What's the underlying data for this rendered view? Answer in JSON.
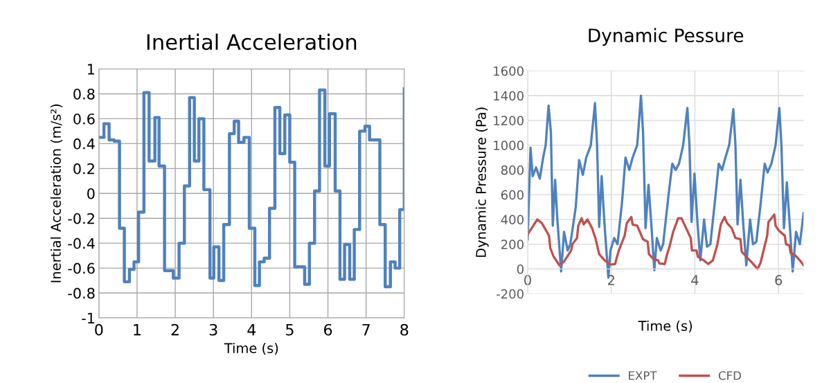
{
  "chart_data": [
    {
      "type": "step",
      "title": "Inertial Acceleration",
      "xlabel": "Time (s)",
      "ylabel": "Inertial Acceleration (m/s²)",
      "color": "#4f81bd",
      "x": [
        0,
        0.133,
        0.267,
        0.4,
        0.54,
        0.667,
        0.8,
        0.92,
        1.04,
        1.18,
        1.315,
        1.467,
        1.576,
        1.72,
        1.95,
        2.1,
        2.24,
        2.376,
        2.5,
        2.62,
        2.75,
        2.91,
        3.01,
        3.145,
        3.27,
        3.42,
        3.545,
        3.66,
        3.8,
        3.94,
        4.085,
        4.206,
        4.33,
        4.47,
        4.61,
        4.74,
        4.87,
        5.0,
        5.13,
        5.39,
        5.515,
        5.65,
        5.78,
        5.92,
        6.04,
        6.19,
        6.315,
        6.436,
        6.57,
        6.69,
        6.83,
        6.97,
        7.09,
        7.36,
        7.5,
        7.636,
        7.76,
        7.88,
        8
      ],
      "values": [
        0.45,
        0.56,
        0.43,
        0.42,
        -0.28,
        -0.71,
        -0.61,
        -0.55,
        -0.15,
        0.81,
        0.26,
        0.61,
        0.22,
        -0.62,
        -0.68,
        -0.4,
        0.06,
        0.77,
        0.26,
        0.6,
        0.03,
        -0.68,
        -0.43,
        -0.7,
        -0.25,
        0.48,
        0.58,
        0.41,
        0.45,
        -0.28,
        -0.74,
        -0.55,
        -0.52,
        -0.12,
        0.69,
        0.32,
        0.63,
        0.25,
        -0.59,
        -0.73,
        -0.4,
        0.02,
        0.83,
        0.22,
        0.64,
        0.02,
        -0.69,
        -0.41,
        -0.69,
        -0.29,
        0.5,
        0.54,
        0.43,
        -0.25,
        -0.75,
        -0.55,
        -0.6,
        -0.13,
        0.84
      ],
      "xlim": [
        0,
        8
      ],
      "ylim": [
        -1,
        1
      ],
      "xticks": [
        0,
        1,
        2,
        3,
        4,
        5,
        6,
        7,
        8
      ],
      "yticks": [
        -1,
        -0.8,
        -0.6,
        -0.4,
        -0.2,
        0,
        0.2,
        0.4,
        0.6,
        0.8,
        1
      ],
      "grid": true,
      "legend": false
    },
    {
      "type": "line",
      "title": "Dynamic Pessure",
      "xlabel": "Time (s)",
      "ylabel": "Dynamic Pressure (Pa)",
      "series": [
        {
          "name": "EXPT",
          "color": "#4f81bd",
          "x": [
            0,
            0.067,
            0.12,
            0.2,
            0.29,
            0.37,
            0.43,
            0.5,
            0.556,
            0.6,
            0.656,
            0.71,
            0.8,
            0.87,
            0.956,
            1.02,
            1.15,
            1.23,
            1.32,
            1.4,
            1.51,
            1.61,
            1.66,
            1.71,
            1.77,
            1.84,
            1.93,
            1.98,
            2.07,
            2.15,
            2.26,
            2.34,
            2.43,
            2.51,
            2.62,
            2.71,
            2.76,
            2.82,
            2.89,
            2.96,
            3.03,
            3.09,
            3.18,
            3.24,
            3.37,
            3.46,
            3.54,
            3.62,
            3.72,
            3.82,
            3.87,
            3.92,
            3.99,
            4.06,
            4.13,
            4.22,
            4.29,
            4.37,
            4.48,
            4.57,
            4.65,
            4.73,
            4.82,
            4.92,
            4.97,
            5.02,
            5.09,
            5.16,
            5.23,
            5.32,
            5.39,
            5.47,
            5.58,
            5.67,
            5.74,
            5.83,
            5.93,
            6.02,
            6.07,
            6.13,
            6.2,
            6.28,
            6.34,
            6.42,
            6.51,
            6.6
          ],
          "values": [
            240,
            980,
            750,
            820,
            730,
            900,
            1000,
            1320,
            1100,
            350,
            720,
            400,
            -20,
            300,
            150,
            200,
            500,
            880,
            760,
            900,
            1000,
            1340,
            1000,
            340,
            750,
            350,
            -70,
            150,
            250,
            200,
            550,
            900,
            800,
            900,
            1000,
            1400,
            1100,
            330,
            680,
            350,
            -10,
            250,
            150,
            200,
            600,
            850,
            800,
            850,
            1000,
            1300,
            1000,
            380,
            770,
            380,
            70,
            400,
            180,
            200,
            550,
            850,
            800,
            900,
            1000,
            1290,
            1000,
            360,
            720,
            350,
            30,
            400,
            200,
            220,
            550,
            850,
            780,
            850,
            1000,
            1300,
            1000,
            330,
            700,
            300,
            -20,
            300,
            200,
            450
          ]
        },
        {
          "name": "CFD",
          "color": "#c0504d",
          "x": [
            0,
            0.23,
            0.34,
            0.51,
            0.54,
            0.62,
            0.76,
            0.87,
            1.04,
            1.07,
            1.18,
            1.21,
            1.29,
            1.34,
            1.43,
            1.54,
            1.62,
            1.71,
            1.84,
            1.98,
            2.09,
            2.18,
            2.32,
            2.37,
            2.48,
            2.51,
            2.62,
            2.76,
            2.87,
            2.9,
            3.01,
            3.12,
            3.15,
            3.28,
            3.32,
            3.4,
            3.48,
            3.6,
            3.68,
            3.79,
            3.9,
            3.93,
            4.04,
            4.07,
            4.21,
            4.32,
            4.43,
            4.54,
            4.62,
            4.71,
            4.77,
            4.88,
            4.97,
            5.09,
            5.12,
            5.23,
            5.37,
            5.5,
            5.57,
            5.65,
            5.73,
            5.76,
            5.9,
            5.93,
            6.01,
            6.15,
            6.18,
            6.26,
            6.29,
            6.4,
            6.51,
            6.6
          ],
          "values": [
            280,
            400,
            370,
            270,
            170,
            100,
            30,
            60,
            150,
            200,
            250,
            350,
            410,
            360,
            400,
            330,
            250,
            120,
            70,
            35,
            40,
            150,
            270,
            370,
            420,
            360,
            350,
            240,
            220,
            120,
            80,
            70,
            45,
            40,
            100,
            190,
            300,
            410,
            410,
            330,
            250,
            150,
            150,
            100,
            70,
            40,
            70,
            200,
            360,
            420,
            370,
            330,
            250,
            240,
            140,
            100,
            50,
            0,
            50,
            160,
            270,
            380,
            440,
            350,
            310,
            270,
            200,
            190,
            130,
            110,
            70,
            30
          ]
        }
      ],
      "xlim": [
        0,
        6.6
      ],
      "ylim": [
        -200,
        1600
      ],
      "xticks": [
        0,
        2,
        4,
        6
      ],
      "yticks": [
        -200,
        0,
        200,
        400,
        600,
        800,
        1000,
        1200,
        1400,
        1600
      ],
      "grid": true,
      "legend": "bottom"
    }
  ]
}
